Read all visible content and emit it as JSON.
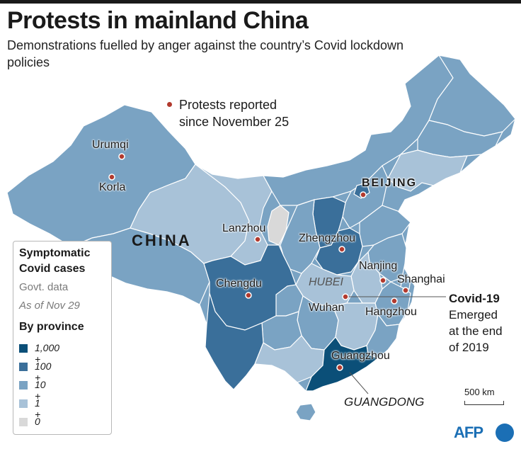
{
  "title": "Protests in mainland China",
  "subtitle": "Demonstrations fuelled by anger against the country’s Covid lockdown policies",
  "protest_note": {
    "line1": "Protests reported",
    "line2": "since November 25"
  },
  "labels": {
    "country": "CHINA",
    "beijing": "BEIJING",
    "hubei": "HUBEI",
    "guangdong": "GUANGDONG"
  },
  "cities": [
    {
      "name": "Urumqi"
    },
    {
      "name": "Korla"
    },
    {
      "name": "Lanzhou"
    },
    {
      "name": "Zhengzhou"
    },
    {
      "name": "Chengdu"
    },
    {
      "name": "Nanjing"
    },
    {
      "name": "Shanghai"
    },
    {
      "name": "Wuhan"
    },
    {
      "name": "Hangzhou"
    },
    {
      "name": "Guangzhou"
    }
  ],
  "legend": {
    "heading1": "Symptomatic",
    "heading2": "Covid cases",
    "source1": "Govt. data",
    "source2": "As of Nov 29",
    "subheading": "By province",
    "items": [
      {
        "label": "1,000 +",
        "color": "#0b4f78"
      },
      {
        "label": "100 +",
        "color": "#3a6f9a"
      },
      {
        "label": "10 +",
        "color": "#7aa3c3"
      },
      {
        "label": "1 +",
        "color": "#a8c2d8"
      },
      {
        "label": "0",
        "color": "#d9d9d9"
      }
    ]
  },
  "covid_note": {
    "title": "Covid-19",
    "line1": "Emerged",
    "line2": "at the end",
    "line3": "of 2019"
  },
  "scale_label": "500 km",
  "credit": "AFP",
  "colors": {
    "protest_dot": "#b23a2e",
    "brand": "#1b6fb5",
    "cases_1000": "#0b4f78",
    "cases_100": "#3a6f9a",
    "cases_10": "#7aa3c3",
    "cases_1": "#a8c2d8",
    "cases_0": "#d9d9d9"
  }
}
